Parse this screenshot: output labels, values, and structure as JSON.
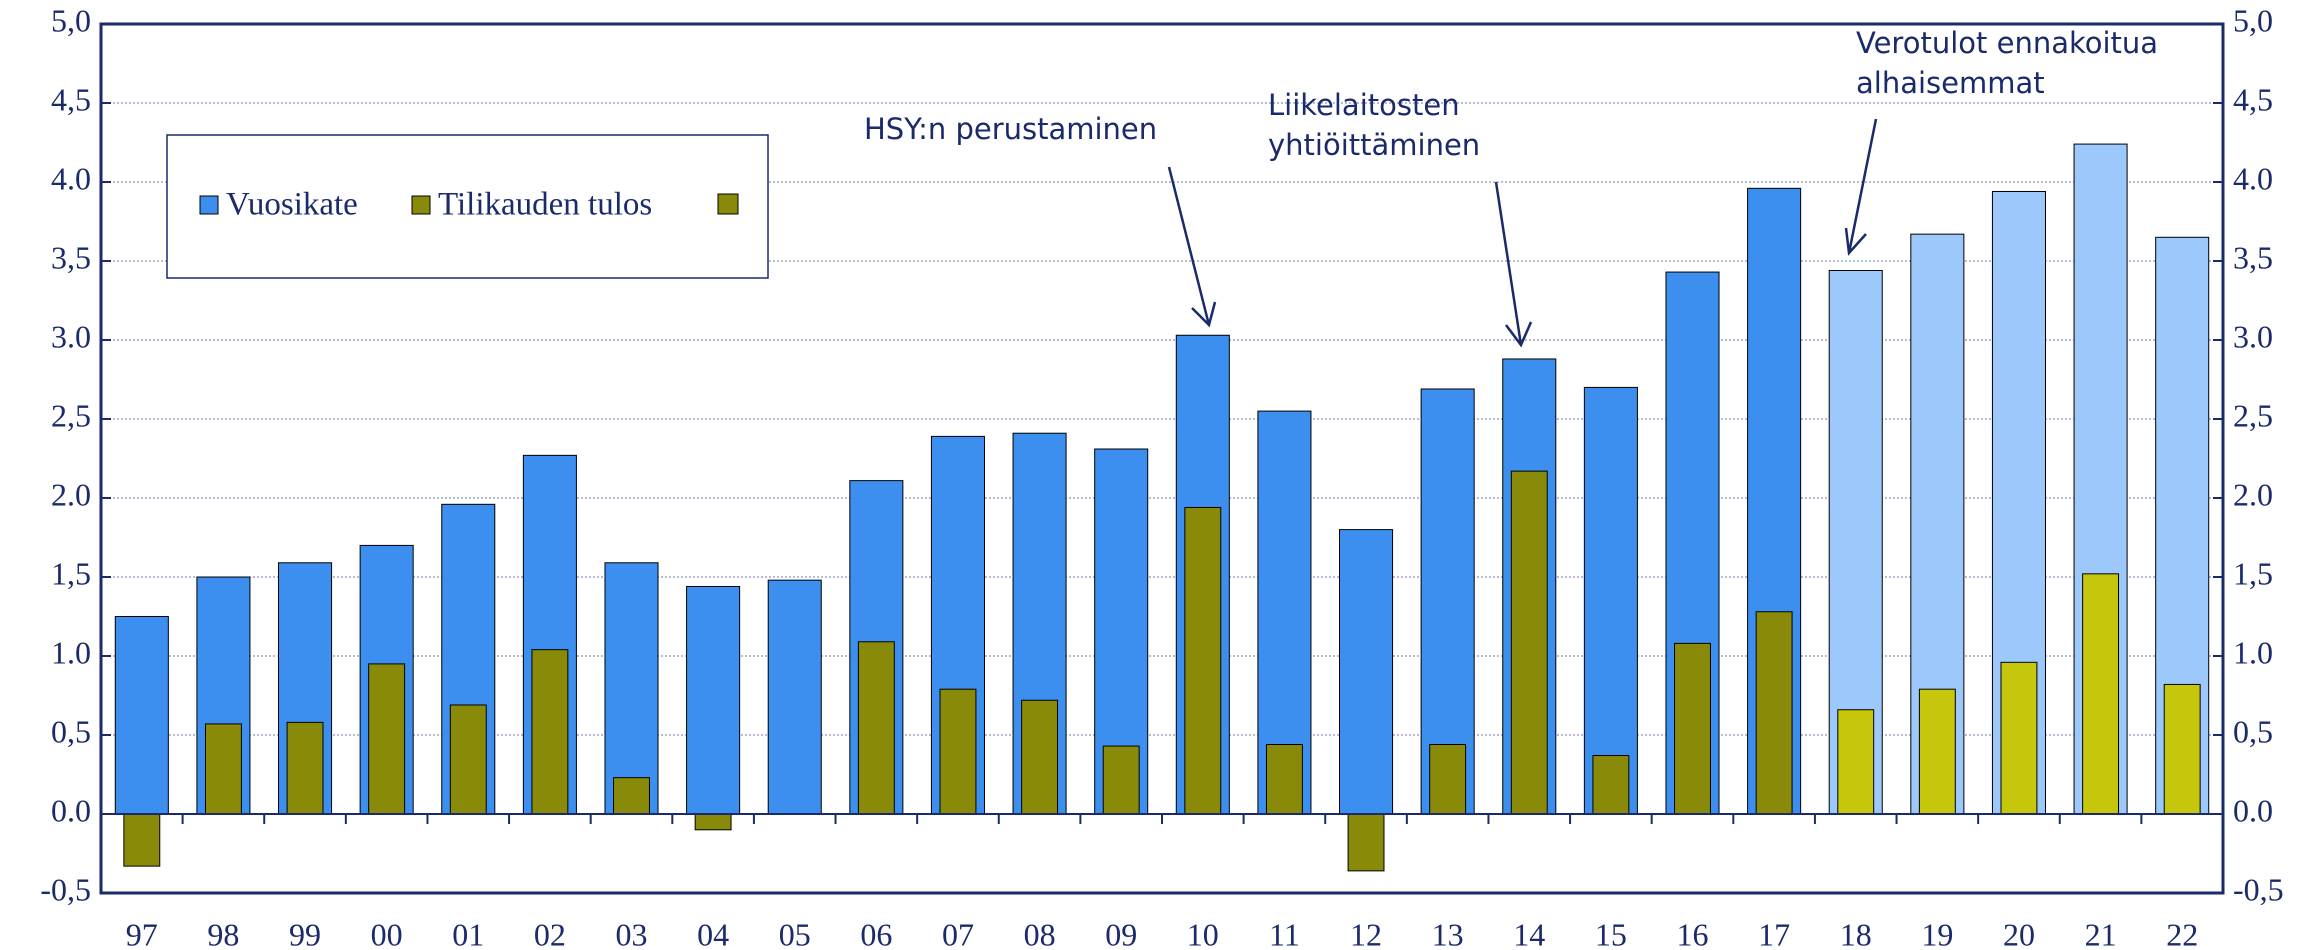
{
  "chart_data": {
    "type": "bar",
    "categories": [
      "97",
      "98",
      "99",
      "00",
      "01",
      "02",
      "03",
      "04",
      "05",
      "06",
      "07",
      "08",
      "09",
      "10",
      "11",
      "12",
      "13",
      "14",
      "15",
      "16",
      "17",
      "18",
      "19",
      "20",
      "21",
      "22"
    ],
    "series": [
      {
        "name": "Vuosikate",
        "color": "#3d8fef",
        "colors": [
          "#3d8fef",
          "#3d8fef",
          "#3d8fef",
          "#3d8fef",
          "#3d8fef",
          "#3d8fef",
          "#3d8fef",
          "#3d8fef",
          "#3d8fef",
          "#3d8fef",
          "#3d8fef",
          "#3d8fef",
          "#3d8fef",
          "#3d8fef",
          "#3d8fef",
          "#3d8fef",
          "#3d8fef",
          "#3d8fef",
          "#3d8fef",
          "#3d8fef",
          "#3d8fef",
          "#9cc8fb",
          "#9cc8fb",
          "#9cc8fb",
          "#9cc8fb",
          "#9cc8fb"
        ],
        "values": [
          1.25,
          1.5,
          1.59,
          1.7,
          1.96,
          2.27,
          1.59,
          1.44,
          1.48,
          2.11,
          2.39,
          2.41,
          2.31,
          3.03,
          2.55,
          1.8,
          2.69,
          2.88,
          2.7,
          3.43,
          3.96,
          3.44,
          3.67,
          3.94,
          4.24,
          3.65
        ]
      },
      {
        "name": "Tilikauden tulos",
        "color": "#8a8a0a",
        "colors": [
          "#8a8a0a",
          "#8a8a0a",
          "#8a8a0a",
          "#8a8a0a",
          "#8a8a0a",
          "#8a8a0a",
          "#8a8a0a",
          "#8a8a0a",
          "#8a8a0a",
          "#8a8a0a",
          "#8a8a0a",
          "#8a8a0a",
          "#8a8a0a",
          "#8a8a0a",
          "#8a8a0a",
          "#8a8a0a",
          "#8a8a0a",
          "#8a8a0a",
          "#8a8a0a",
          "#8a8a0a",
          "#8a8a0a",
          "#c6c60c",
          "#c6c60c",
          "#c6c60c",
          "#c6c60c",
          "#c6c60c"
        ],
        "values": [
          -0.33,
          0.57,
          0.58,
          0.95,
          0.69,
          1.04,
          0.23,
          -0.1,
          0.0,
          1.09,
          0.79,
          0.72,
          0.43,
          1.94,
          0.44,
          -0.36,
          0.44,
          2.17,
          0.37,
          1.08,
          1.28,
          0.66,
          0.79,
          0.96,
          1.52,
          0.82
        ]
      }
    ],
    "ylim": [
      -0.5,
      5.0
    ],
    "yticks": [
      {
        "value": -0.5,
        "label": "-0,5"
      },
      {
        "value": 0,
        "label": "0.0"
      },
      {
        "value": 0.5,
        "label": "0,5"
      },
      {
        "value": 1,
        "label": "1.0"
      },
      {
        "value": 1.5,
        "label": "1,5"
      },
      {
        "value": 2,
        "label": "2.0"
      },
      {
        "value": 2.5,
        "label": "2,5"
      },
      {
        "value": 3,
        "label": "3.0"
      },
      {
        "value": 3.5,
        "label": "3,5"
      },
      {
        "value": 4,
        "label": "4.0"
      },
      {
        "value": 4.5,
        "label": "4,5"
      },
      {
        "value": 5,
        "label": "5,0"
      }
    ],
    "grid": true,
    "legend": "upper left",
    "annotations": [
      {
        "lines": [
          "HSY:n perustaminen"
        ]
      },
      {
        "lines": [
          "Liikelaitosten",
          "yhtiöittäminen"
        ]
      },
      {
        "lines": [
          "Verotulot ennakoitua",
          "alhaisemmat"
        ]
      }
    ]
  }
}
